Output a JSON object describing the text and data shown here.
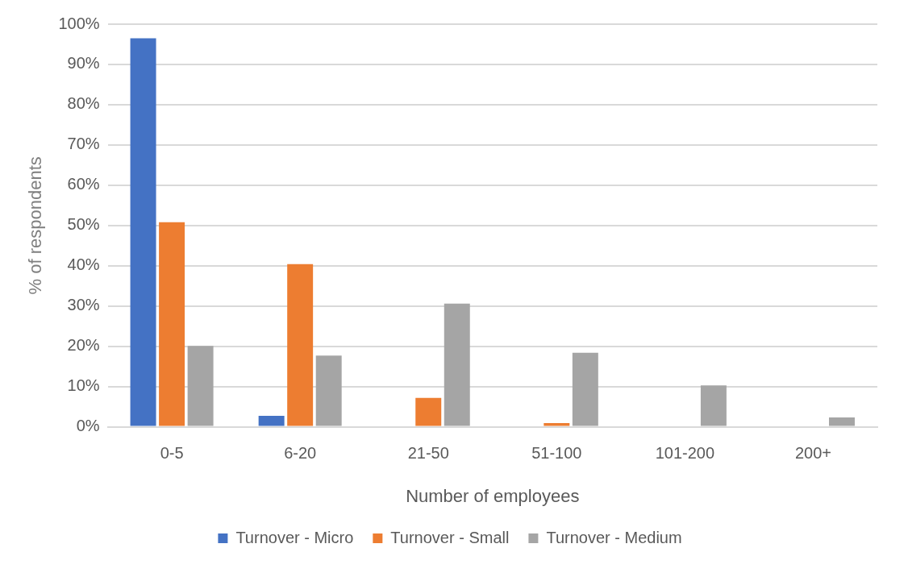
{
  "chart_data": {
    "type": "bar",
    "xlabel": "Number of employees",
    "ylabel": "% of respondents",
    "categories": [
      "0-5",
      "6-20",
      "21-50",
      "51-100",
      "101-200",
      "200+"
    ],
    "series": [
      {
        "name": "Turnover - Micro",
        "color": "#4472c4",
        "values": [
          96.5,
          2.7,
          0,
          0,
          0,
          0
        ]
      },
      {
        "name": "Turnover - Small",
        "color": "#ed7d31",
        "values": [
          50.8,
          40.4,
          7.2,
          0.9,
          0,
          0
        ]
      },
      {
        "name": "Turnover - Medium",
        "color": "#a5a5a5",
        "values": [
          20.1,
          17.7,
          30.6,
          18.4,
          10.3,
          2.3
        ]
      }
    ],
    "ylim": [
      0,
      100
    ],
    "yticks": [
      {
        "value": 0,
        "label": "0%"
      },
      {
        "value": 10,
        "label": "10%"
      },
      {
        "value": 20,
        "label": "20%"
      },
      {
        "value": 30,
        "label": "30%"
      },
      {
        "value": 40,
        "label": "40%"
      },
      {
        "value": 50,
        "label": "50%"
      },
      {
        "value": 60,
        "label": "60%"
      },
      {
        "value": 70,
        "label": "70%"
      },
      {
        "value": 80,
        "label": "80%"
      },
      {
        "value": 90,
        "label": "90%"
      },
      {
        "value": 100,
        "label": "100%"
      }
    ],
    "grid": "y",
    "legend": "bottom"
  }
}
